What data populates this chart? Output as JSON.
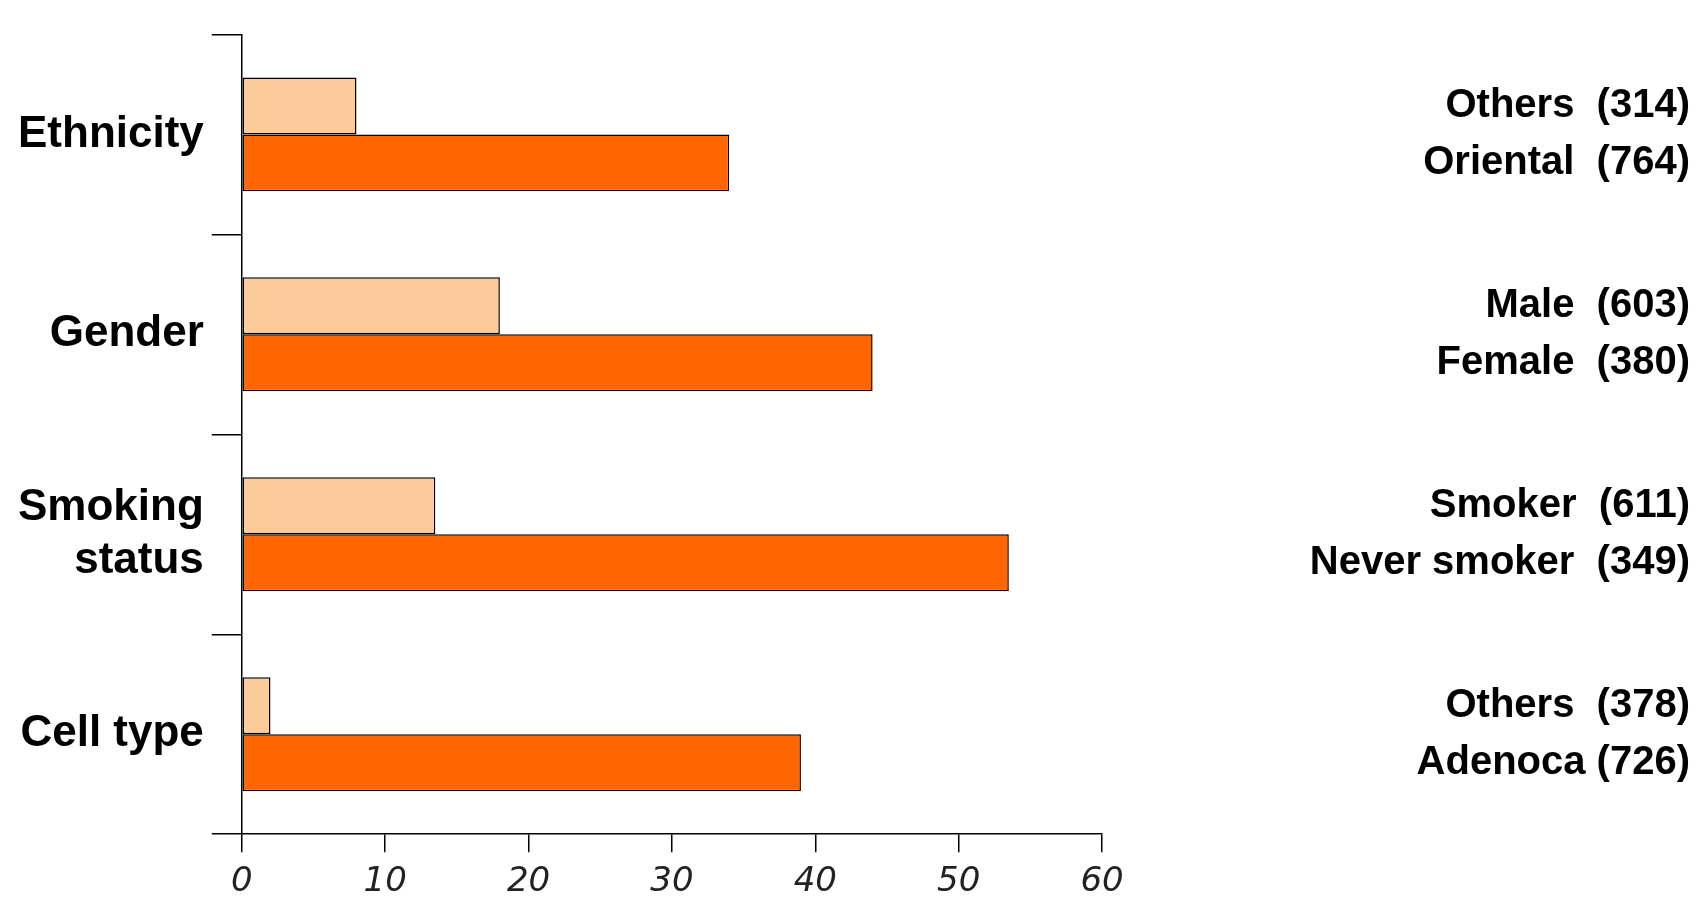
{
  "chart_data": {
    "type": "bar",
    "orientation": "horizontal",
    "categories": [
      "Ethnicity",
      "Gender",
      "Smoking status",
      "Cell type"
    ],
    "series": [
      {
        "color": "#fdca9a",
        "values": [
          8,
          18,
          13.5,
          2
        ]
      },
      {
        "color": "#ff6600",
        "values": [
          34,
          44,
          53.5,
          39
        ]
      }
    ],
    "annotations": [
      "Others  (314)",
      "Oriental  (764)",
      "Male  (603)",
      "Female  (380)",
      "Smoker  (611)",
      "Never smoker  (349)",
      "Others  (378)",
      "Adenoca (726)"
    ],
    "xlim": [
      0,
      60
    ],
    "xticks": [
      0,
      10,
      20,
      30,
      40,
      50,
      60
    ],
    "grid": false,
    "legend": false
  }
}
